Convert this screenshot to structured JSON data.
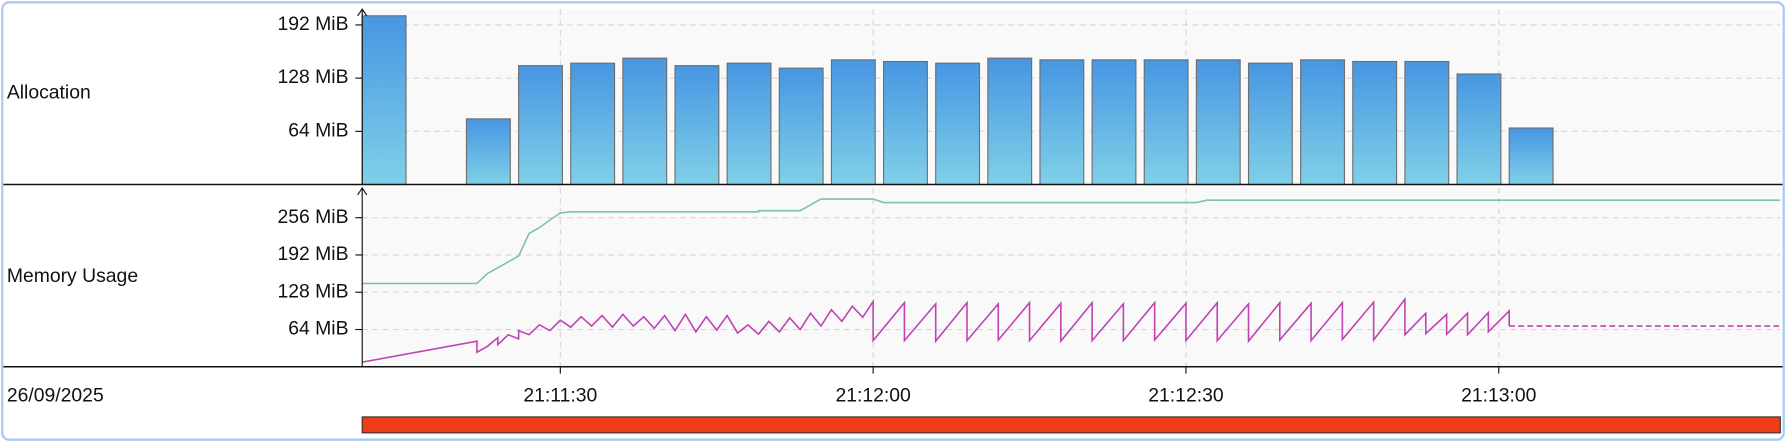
{
  "chart_data": [
    {
      "type": "bar",
      "label": "Allocation",
      "x": [
        "21:11:11",
        "21:11:21",
        "21:11:26",
        "21:11:31",
        "21:11:36",
        "21:11:41",
        "21:11:46",
        "21:11:51",
        "21:11:56",
        "21:12:01",
        "21:12:06",
        "21:12:11",
        "21:12:16",
        "21:12:21",
        "21:12:26",
        "21:12:31",
        "21:12:36",
        "21:12:41",
        "21:12:46",
        "21:12:51",
        "21:12:56",
        "21:13:01"
      ],
      "values": [
        203,
        79,
        143,
        146,
        152,
        143,
        146,
        140,
        150,
        148,
        146,
        152,
        150,
        150,
        150,
        150,
        146,
        150,
        148,
        148,
        133,
        68
      ],
      "colors": [
        "#4796e2",
        "#80d0e8"
      ],
      "xlim": [
        "21:11:11",
        "21:13:27"
      ],
      "ylim": [
        0,
        211
      ],
      "yticks": [
        {
          "value": 64,
          "label": "64 MiB"
        },
        {
          "value": 128,
          "label": "128 MiB"
        },
        {
          "value": 192,
          "label": "192 MiB"
        }
      ],
      "grid": true
    },
    {
      "type": "line",
      "label": "Memory Usage",
      "date": "26/09/2025",
      "xlim": [
        "21:11:11",
        "21:13:27"
      ],
      "xticks": [
        "21:11:30",
        "21:12:00",
        "21:12:30",
        "21:13:00"
      ],
      "ylim": [
        0,
        307
      ],
      "yticks": [
        {
          "value": 64,
          "label": "64 MiB"
        },
        {
          "value": 128,
          "label": "128 MiB"
        },
        {
          "value": 192,
          "label": "192 MiB"
        },
        {
          "value": 256,
          "label": "256 MiB"
        }
      ],
      "grid": true,
      "series": [
        {
          "color": "#7cc49c",
          "x": [
            "21:11:11",
            "21:11:22",
            "21:11:23",
            "21:11:25",
            "21:11:26",
            "21:11:27",
            "21:11:28",
            "21:11:29",
            "21:11:30",
            "21:11:31",
            "21:11:49",
            "21:11:49",
            "21:11:53",
            "21:11:55",
            "21:12:00",
            "21:12:01",
            "21:12:31",
            "21:12:32",
            "21:13:27"
          ],
          "values": [
            143,
            143,
            160,
            180,
            190,
            229,
            239,
            252,
            264,
            266,
            266,
            268,
            268,
            288,
            288,
            282,
            282,
            286,
            286
          ]
        },
        {
          "color": "#c043b4",
          "x": [
            "21:11:11",
            "21:11:22",
            "21:11:22",
            "21:11:23",
            "21:11:24",
            "21:11:24",
            "21:11:25",
            "21:11:26",
            "21:11:26",
            "21:11:27",
            "21:11:28",
            "21:11:29",
            "21:11:30",
            "21:11:31",
            "21:11:32",
            "21:11:33",
            "21:11:34",
            "21:11:35",
            "21:11:36",
            "21:11:37",
            "21:11:38",
            "21:11:39",
            "21:11:40",
            "21:11:41",
            "21:11:42",
            "21:11:43",
            "21:11:44",
            "21:11:45",
            "21:11:46",
            "21:11:47",
            "21:11:48",
            "21:11:49",
            "21:11:50",
            "21:11:51",
            "21:11:52",
            "21:11:53",
            "21:11:54",
            "21:11:55",
            "21:11:56",
            "21:11:57",
            "21:11:58",
            "21:11:59",
            "21:12:00",
            "21:12:00",
            "21:12:03",
            "21:12:03",
            "21:12:06",
            "21:12:06",
            "21:12:09",
            "21:12:09",
            "21:12:12",
            "21:12:12",
            "21:12:15",
            "21:12:15",
            "21:12:18",
            "21:12:18",
            "21:12:21",
            "21:12:21",
            "21:12:24",
            "21:12:24",
            "21:12:27",
            "21:12:27",
            "21:12:30",
            "21:12:30",
            "21:12:33",
            "21:12:33",
            "21:12:36",
            "21:12:36",
            "21:12:39",
            "21:12:39",
            "21:12:42",
            "21:12:42",
            "21:12:45",
            "21:12:45",
            "21:12:48",
            "21:12:48",
            "21:12:51",
            "21:12:51",
            "21:12:53",
            "21:12:53",
            "21:12:55",
            "21:12:55",
            "21:12:57",
            "21:12:57",
            "21:12:59",
            "21:12:59",
            "21:13:01",
            "21:13:01"
          ],
          "values": [
            8,
            44,
            25,
            35,
            50,
            38,
            55,
            48,
            62,
            55,
            72,
            62,
            80,
            68,
            86,
            70,
            88,
            68,
            90,
            70,
            86,
            66,
            88,
            62,
            90,
            60,
            86,
            63,
            88,
            58,
            72,
            56,
            78,
            60,
            84,
            64,
            92,
            70,
            98,
            78,
            104,
            85,
            112,
            45,
            110,
            45,
            108,
            44,
            110,
            45,
            108,
            46,
            110,
            45,
            109,
            44,
            110,
            45,
            108,
            45,
            110,
            46,
            109,
            45,
            110,
            45,
            108,
            44,
            110,
            46,
            109,
            45,
            110,
            47,
            111,
            46,
            116,
            55,
            92,
            57,
            90,
            56,
            92,
            55,
            93,
            60,
            96,
            70
          ]
        },
        {
          "color": "#c043b4",
          "dashed": true,
          "x": [
            "21:13:01",
            "21:13:27"
          ],
          "values": [
            70,
            70
          ]
        }
      ]
    }
  ]
}
